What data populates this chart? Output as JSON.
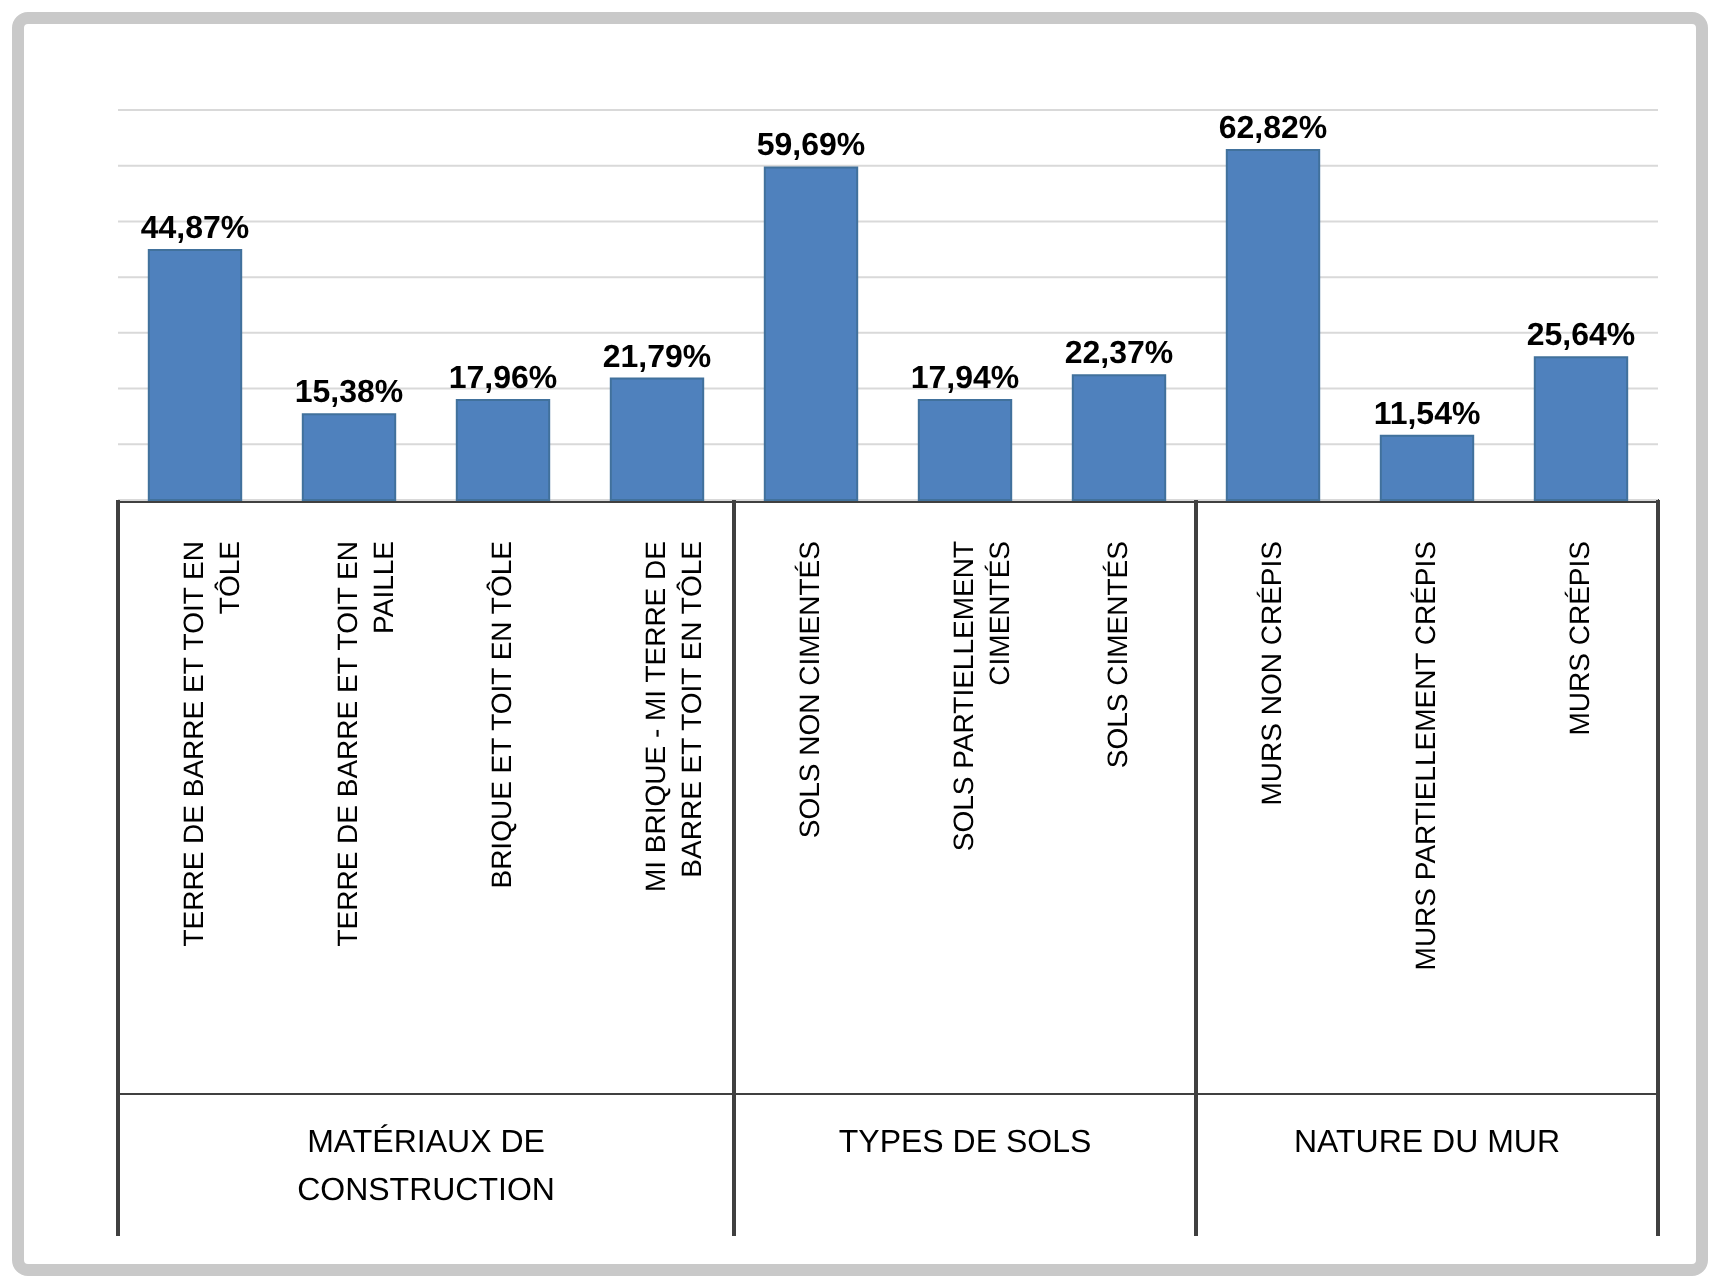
{
  "chart_data": {
    "type": "bar",
    "categories": [
      "TERRE DE BARRE ET TOIT EN TÔLE",
      "TERRE DE BARRE ET TOIT EN PAILLE",
      "BRIQUE ET TOIT EN TÔLE",
      "MI BRIQUE - MI TERRE DE BARRE ET TOIT EN TÔLE",
      "SOLS NON CIMENTÉS",
      "SOLS PARTIELLEMENT CIMENTÉS",
      "SOLS CIMENTÉS",
      "MURS NON CRÉPIS",
      "MURS PARTIELLEMENT CRÉPIS",
      "MURS CRÉPIS"
    ],
    "values": [
      44.87,
      15.38,
      17.96,
      21.79,
      59.69,
      17.94,
      22.37,
      62.82,
      11.54,
      25.64
    ],
    "value_labels": [
      "44,87%",
      "15,38%",
      "17,96%",
      "21,79%",
      "59,69%",
      "17,94%",
      "22,37%",
      "62,82%",
      "11,54%",
      "25,64%"
    ],
    "color": "#4f81bd",
    "ylim": [
      0,
      70
    ],
    "yticks": [
      {
        "value": 0,
        "label": null
      },
      {
        "value": 10,
        "label": null
      },
      {
        "value": 20,
        "label": null
      },
      {
        "value": 30,
        "label": null
      },
      {
        "value": 40,
        "label": null
      },
      {
        "value": 50,
        "label": null
      },
      {
        "value": 60,
        "label": null
      },
      {
        "value": 70,
        "label": null
      }
    ],
    "grid": "y",
    "tick_labels": "x",
    "annotations": [
      "MATÉRIAUX DE CONSTRUCTION",
      "TYPES DE SOLS",
      "NATURE DU MUR"
    ]
  }
}
